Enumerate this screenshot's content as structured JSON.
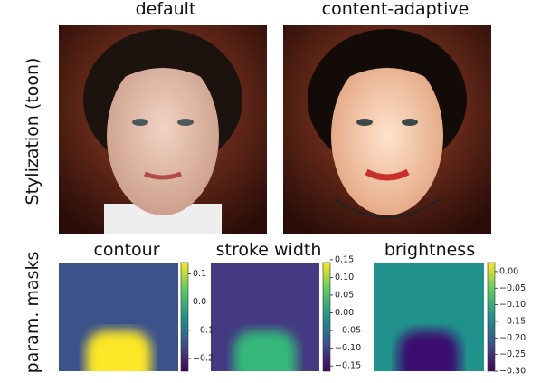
{
  "figure": {
    "columns": [
      "default",
      "content-adaptive"
    ],
    "row_labels": [
      "Stylization (toon)",
      "param. masks"
    ],
    "masks": [
      {
        "title": "contour",
        "clim": [
          -0.245,
          0.14
        ],
        "ticks": [
          0.1,
          {
            "value": 0,
            "label": "0.0"
          },
          {
            "value": -0.1,
            "label": "−0.1"
          },
          {
            "value": -0.2,
            "label": "−0.2"
          }
        ]
      },
      {
        "title": "stroke width",
        "clim": [
          -0.165,
          0.142
        ],
        "ticks": [
          {
            "value": 0.15,
            "label": "0.15"
          },
          {
            "value": 0.1,
            "label": "0.10"
          },
          {
            "value": 0.05,
            "label": "0.05"
          },
          {
            "value": 0,
            "label": "0.00"
          },
          {
            "value": -0.05,
            "label": "−0.05"
          },
          {
            "value": -0.1,
            "label": "−0.10"
          },
          {
            "value": -0.15,
            "label": "−0.15"
          }
        ]
      },
      {
        "title": "brightness",
        "clim": [
          -0.3,
          0.027
        ],
        "ticks": [
          {
            "value": 0,
            "label": "0.00"
          },
          {
            "value": -0.05,
            "label": "−0.05"
          },
          {
            "value": -0.1,
            "label": "−0.10"
          },
          {
            "value": -0.15,
            "label": "−0.15"
          },
          {
            "value": -0.2,
            "label": "−0.20"
          },
          {
            "value": -0.25,
            "label": "−0.25"
          },
          {
            "value": -0.3,
            "label": "−0.30"
          }
        ]
      }
    ]
  }
}
